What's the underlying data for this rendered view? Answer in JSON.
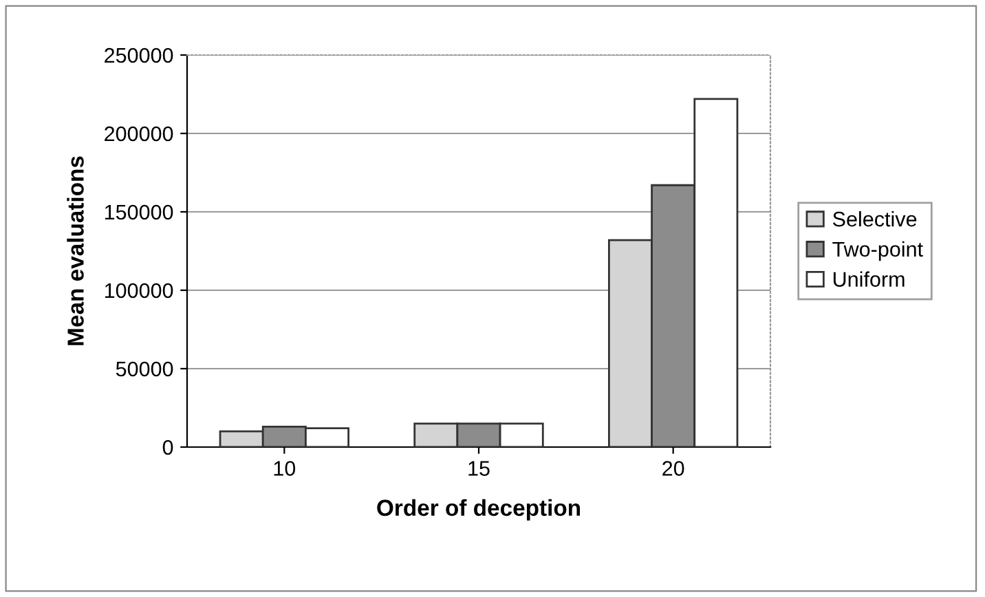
{
  "chart_data": {
    "type": "bar",
    "xlabel": "Order of deception",
    "ylabel": "Mean evaluations",
    "categories": [
      "10",
      "15",
      "20"
    ],
    "series": [
      {
        "name": "Selective",
        "color": "#d4d4d4",
        "values": [
          10000,
          15000,
          132000
        ]
      },
      {
        "name": "Two-point",
        "color": "#8c8c8c",
        "values": [
          13000,
          15000,
          167000
        ]
      },
      {
        "name": "Uniform",
        "color": "#ffffff",
        "values": [
          12000,
          15000,
          222000
        ]
      }
    ],
    "ylim": [
      0,
      250000
    ],
    "yticks": [
      0,
      50000,
      100000,
      150000,
      200000,
      250000
    ],
    "grid": "y",
    "legend": "right"
  }
}
